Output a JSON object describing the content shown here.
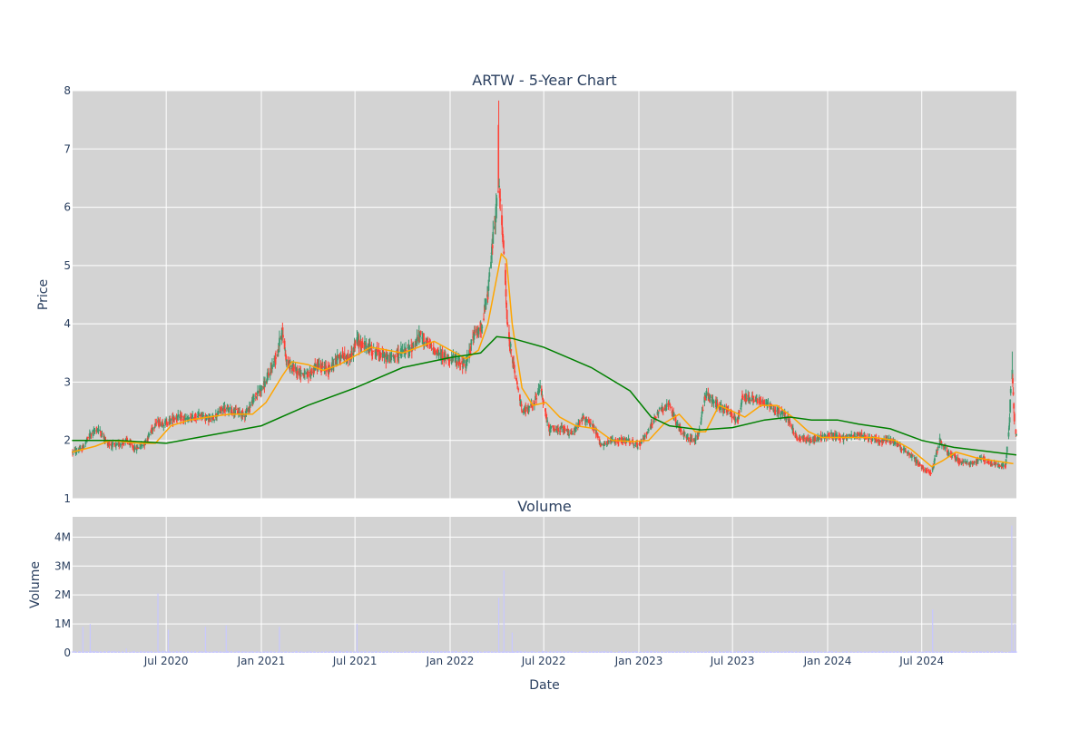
{
  "colors": {
    "plot_bg": "#d3d3d3",
    "grid": "#ffffff",
    "text": "#2a3f5f",
    "up": "#3d9970",
    "down": "#ff4136",
    "ma_short": "#ffa500",
    "ma_long": "#008000",
    "volume": "#c8c8ff"
  },
  "chart_data": [
    {
      "type": "candlestick",
      "title": "ARTW - 5-Year Chart",
      "ylabel": "Price",
      "ylim": [
        1,
        8
      ],
      "y_ticks": [
        1,
        2,
        3,
        4,
        5,
        6,
        7,
        8
      ],
      "x_tick_labels": [
        "Jul 2020",
        "Jan 2021",
        "Jul 2021",
        "Jan 2022",
        "Jul 2022",
        "Jan 2023",
        "Jul 2023",
        "Jan 2024",
        "Jul 2024"
      ],
      "grid": true,
      "legend": "none",
      "price_path": [
        [
          "2020-01-01",
          1.8
        ],
        [
          "2020-01-20",
          1.85
        ],
        [
          "2020-02-05",
          2.1
        ],
        [
          "2020-02-20",
          2.2
        ],
        [
          "2020-03-10",
          1.95
        ],
        [
          "2020-03-25",
          1.9
        ],
        [
          "2020-04-15",
          2.0
        ],
        [
          "2020-05-01",
          1.85
        ],
        [
          "2020-05-20",
          1.95
        ],
        [
          "2020-06-10",
          2.3
        ],
        [
          "2020-07-01",
          2.3
        ],
        [
          "2020-07-20",
          2.4
        ],
        [
          "2020-08-15",
          2.35
        ],
        [
          "2020-09-05",
          2.45
        ],
        [
          "2020-09-25",
          2.35
        ],
        [
          "2020-10-20",
          2.55
        ],
        [
          "2020-11-10",
          2.5
        ],
        [
          "2020-12-01",
          2.45
        ],
        [
          "2020-12-20",
          2.75
        ],
        [
          "2021-01-10",
          3.0
        ],
        [
          "2021-02-01",
          3.5
        ],
        [
          "2021-02-10",
          3.9
        ],
        [
          "2021-02-20",
          3.3
        ],
        [
          "2021-03-10",
          3.2
        ],
        [
          "2021-04-01",
          3.1
        ],
        [
          "2021-04-20",
          3.3
        ],
        [
          "2021-05-10",
          3.2
        ],
        [
          "2021-06-01",
          3.45
        ],
        [
          "2021-06-20",
          3.4
        ],
        [
          "2021-07-05",
          3.7
        ],
        [
          "2021-07-25",
          3.6
        ],
        [
          "2021-08-15",
          3.5
        ],
        [
          "2021-09-05",
          3.4
        ],
        [
          "2021-09-25",
          3.5
        ],
        [
          "2021-10-15",
          3.55
        ],
        [
          "2021-11-05",
          3.8
        ],
        [
          "2021-11-25",
          3.6
        ],
        [
          "2021-12-15",
          3.45
        ],
        [
          "2022-01-05",
          3.4
        ],
        [
          "2022-02-01",
          3.3
        ],
        [
          "2022-02-15",
          3.8
        ],
        [
          "2022-03-01",
          3.9
        ],
        [
          "2022-03-15",
          4.5
        ],
        [
          "2022-03-25",
          5.5
        ],
        [
          "2022-04-05",
          6.4
        ],
        [
          "2022-04-15",
          5.2
        ],
        [
          "2022-04-22",
          3.9
        ],
        [
          "2022-05-05",
          3.2
        ],
        [
          "2022-05-20",
          2.5
        ],
        [
          "2022-06-10",
          2.6
        ],
        [
          "2022-06-25",
          2.9
        ],
        [
          "2022-07-10",
          2.2
        ],
        [
          "2022-08-05",
          2.2
        ],
        [
          "2022-08-25",
          2.1
        ],
        [
          "2022-09-15",
          2.4
        ],
        [
          "2022-10-05",
          2.25
        ],
        [
          "2022-10-20",
          1.9
        ],
        [
          "2022-11-10",
          2.0
        ],
        [
          "2022-12-10",
          2.0
        ],
        [
          "2023-01-01",
          1.9
        ],
        [
          "2023-01-20",
          2.2
        ],
        [
          "2023-02-10",
          2.5
        ],
        [
          "2023-03-01",
          2.6
        ],
        [
          "2023-03-20",
          2.2
        ],
        [
          "2023-04-10",
          2.0
        ],
        [
          "2023-04-25",
          2.05
        ],
        [
          "2023-05-10",
          2.8
        ],
        [
          "2023-06-01",
          2.6
        ],
        [
          "2023-06-25",
          2.5
        ],
        [
          "2023-07-10",
          2.3
        ],
        [
          "2023-07-20",
          2.75
        ],
        [
          "2023-08-15",
          2.7
        ],
        [
          "2023-09-05",
          2.65
        ],
        [
          "2023-09-25",
          2.5
        ],
        [
          "2023-10-15",
          2.4
        ],
        [
          "2023-11-01",
          2.05
        ],
        [
          "2023-11-25",
          2.0
        ],
        [
          "2023-12-20",
          2.05
        ],
        [
          "2024-01-10",
          2.1
        ],
        [
          "2024-02-01",
          2.05
        ],
        [
          "2024-03-01",
          2.1
        ],
        [
          "2024-03-20",
          2.05
        ],
        [
          "2024-04-10",
          2.0
        ],
        [
          "2024-05-01",
          2.0
        ],
        [
          "2024-05-25",
          1.85
        ],
        [
          "2024-06-15",
          1.7
        ],
        [
          "2024-07-05",
          1.5
        ],
        [
          "2024-07-20",
          1.45
        ],
        [
          "2024-08-05",
          2.0
        ],
        [
          "2024-08-20",
          1.8
        ],
        [
          "2024-09-10",
          1.65
        ],
        [
          "2024-10-05",
          1.6
        ],
        [
          "2024-10-25",
          1.7
        ],
        [
          "2024-11-15",
          1.6
        ],
        [
          "2024-12-10",
          1.55
        ],
        [
          "2024-12-18",
          2.4
        ],
        [
          "2024-12-22",
          3.4
        ],
        [
          "2024-12-28",
          2.1
        ]
      ],
      "ma_short_path": [
        [
          "2020-01-01",
          1.8
        ],
        [
          "2020-02-15",
          1.9
        ],
        [
          "2020-03-15",
          2.0
        ],
        [
          "2020-05-10",
          1.95
        ],
        [
          "2020-06-10",
          1.95
        ],
        [
          "2020-07-10",
          2.25
        ],
        [
          "2020-08-15",
          2.35
        ],
        [
          "2020-09-20",
          2.4
        ],
        [
          "2020-11-01",
          2.45
        ],
        [
          "2020-12-15",
          2.45
        ],
        [
          "2021-01-10",
          2.65
        ],
        [
          "2021-02-10",
          3.1
        ],
        [
          "2021-03-01",
          3.35
        ],
        [
          "2021-04-01",
          3.3
        ],
        [
          "2021-05-01",
          3.2
        ],
        [
          "2021-06-01",
          3.3
        ],
        [
          "2021-07-01",
          3.45
        ],
        [
          "2021-08-01",
          3.6
        ],
        [
          "2021-09-01",
          3.55
        ],
        [
          "2021-10-01",
          3.5
        ],
        [
          "2021-11-01",
          3.6
        ],
        [
          "2021-12-01",
          3.7
        ],
        [
          "2022-01-01",
          3.55
        ],
        [
          "2022-02-01",
          3.4
        ],
        [
          "2022-02-25",
          3.55
        ],
        [
          "2022-03-15",
          4.0
        ],
        [
          "2022-03-28",
          4.6
        ],
        [
          "2022-04-10",
          5.2
        ],
        [
          "2022-04-20",
          5.1
        ],
        [
          "2022-05-01",
          4.0
        ],
        [
          "2022-05-20",
          2.9
        ],
        [
          "2022-06-10",
          2.6
        ],
        [
          "2022-07-05",
          2.65
        ],
        [
          "2022-08-01",
          2.4
        ],
        [
          "2022-09-01",
          2.25
        ],
        [
          "2022-10-10",
          2.2
        ],
        [
          "2022-11-10",
          2.0
        ],
        [
          "2022-12-20",
          1.98
        ],
        [
          "2023-01-20",
          2.0
        ],
        [
          "2023-02-20",
          2.3
        ],
        [
          "2023-03-20",
          2.45
        ],
        [
          "2023-04-20",
          2.15
        ],
        [
          "2023-05-10",
          2.15
        ],
        [
          "2023-06-05",
          2.6
        ],
        [
          "2023-07-01",
          2.5
        ],
        [
          "2023-07-25",
          2.4
        ],
        [
          "2023-08-25",
          2.6
        ],
        [
          "2023-09-25",
          2.6
        ],
        [
          "2023-10-25",
          2.4
        ],
        [
          "2023-11-25",
          2.15
        ],
        [
          "2023-12-20",
          2.05
        ],
        [
          "2024-02-01",
          2.05
        ],
        [
          "2024-04-01",
          2.05
        ],
        [
          "2024-05-10",
          2.0
        ],
        [
          "2024-06-10",
          1.85
        ],
        [
          "2024-07-20",
          1.55
        ],
        [
          "2024-08-10",
          1.65
        ],
        [
          "2024-09-05",
          1.8
        ],
        [
          "2024-10-15",
          1.7
        ],
        [
          "2024-11-20",
          1.65
        ],
        [
          "2024-12-25",
          1.6
        ]
      ],
      "ma_long_path": [
        [
          "2020-01-01",
          2.0
        ],
        [
          "2020-04-01",
          2.0
        ],
        [
          "2020-07-01",
          1.95
        ],
        [
          "2020-10-01",
          2.1
        ],
        [
          "2021-01-01",
          2.25
        ],
        [
          "2021-04-01",
          2.6
        ],
        [
          "2021-07-01",
          2.9
        ],
        [
          "2021-10-01",
          3.25
        ],
        [
          "2022-01-01",
          3.42
        ],
        [
          "2022-03-01",
          3.5
        ],
        [
          "2022-04-01",
          3.78
        ],
        [
          "2022-05-01",
          3.75
        ],
        [
          "2022-07-01",
          3.6
        ],
        [
          "2022-10-01",
          3.25
        ],
        [
          "2022-12-15",
          2.85
        ],
        [
          "2023-01-25",
          2.4
        ],
        [
          "2023-03-01",
          2.25
        ],
        [
          "2023-05-01",
          2.18
        ],
        [
          "2023-07-01",
          2.22
        ],
        [
          "2023-09-01",
          2.35
        ],
        [
          "2023-10-20",
          2.4
        ],
        [
          "2023-12-01",
          2.35
        ],
        [
          "2024-01-20",
          2.35
        ],
        [
          "2024-03-01",
          2.28
        ],
        [
          "2024-05-01",
          2.2
        ],
        [
          "2024-07-01",
          2.0
        ],
        [
          "2024-09-01",
          1.88
        ],
        [
          "2024-12-31",
          1.75
        ]
      ]
    },
    {
      "type": "bar",
      "title": "Volume",
      "ylabel": "Volume",
      "xlabel": "Date",
      "ylim": [
        0,
        4700000
      ],
      "y_ticks": [
        0,
        1000000,
        2000000,
        3000000,
        4000000
      ],
      "y_tick_labels": [
        "0",
        "1M",
        "2M",
        "3M",
        "4M"
      ],
      "x_tick_labels": [
        "Jul 2020",
        "Jan 2021",
        "Jul 2021",
        "Jan 2022",
        "Jul 2022",
        "Jan 2023",
        "Jul 2023",
        "Jan 2024",
        "Jul 2024"
      ],
      "grid": true,
      "volume_spikes": [
        [
          "2020-01-22",
          900000
        ],
        [
          "2020-02-05",
          1000000
        ],
        [
          "2020-04-15",
          150000
        ],
        [
          "2020-06-15",
          2050000
        ],
        [
          "2020-07-05",
          800000
        ],
        [
          "2020-09-15",
          900000
        ],
        [
          "2020-10-25",
          950000
        ],
        [
          "2021-02-05",
          900000
        ],
        [
          "2021-07-05",
          1000000
        ],
        [
          "2022-04-05",
          1900000
        ],
        [
          "2022-04-15",
          2850000
        ],
        [
          "2022-05-01",
          700000
        ],
        [
          "2024-07-22",
          1500000
        ],
        [
          "2024-12-22",
          4400000
        ],
        [
          "2024-12-28",
          1000000
        ]
      ]
    }
  ]
}
